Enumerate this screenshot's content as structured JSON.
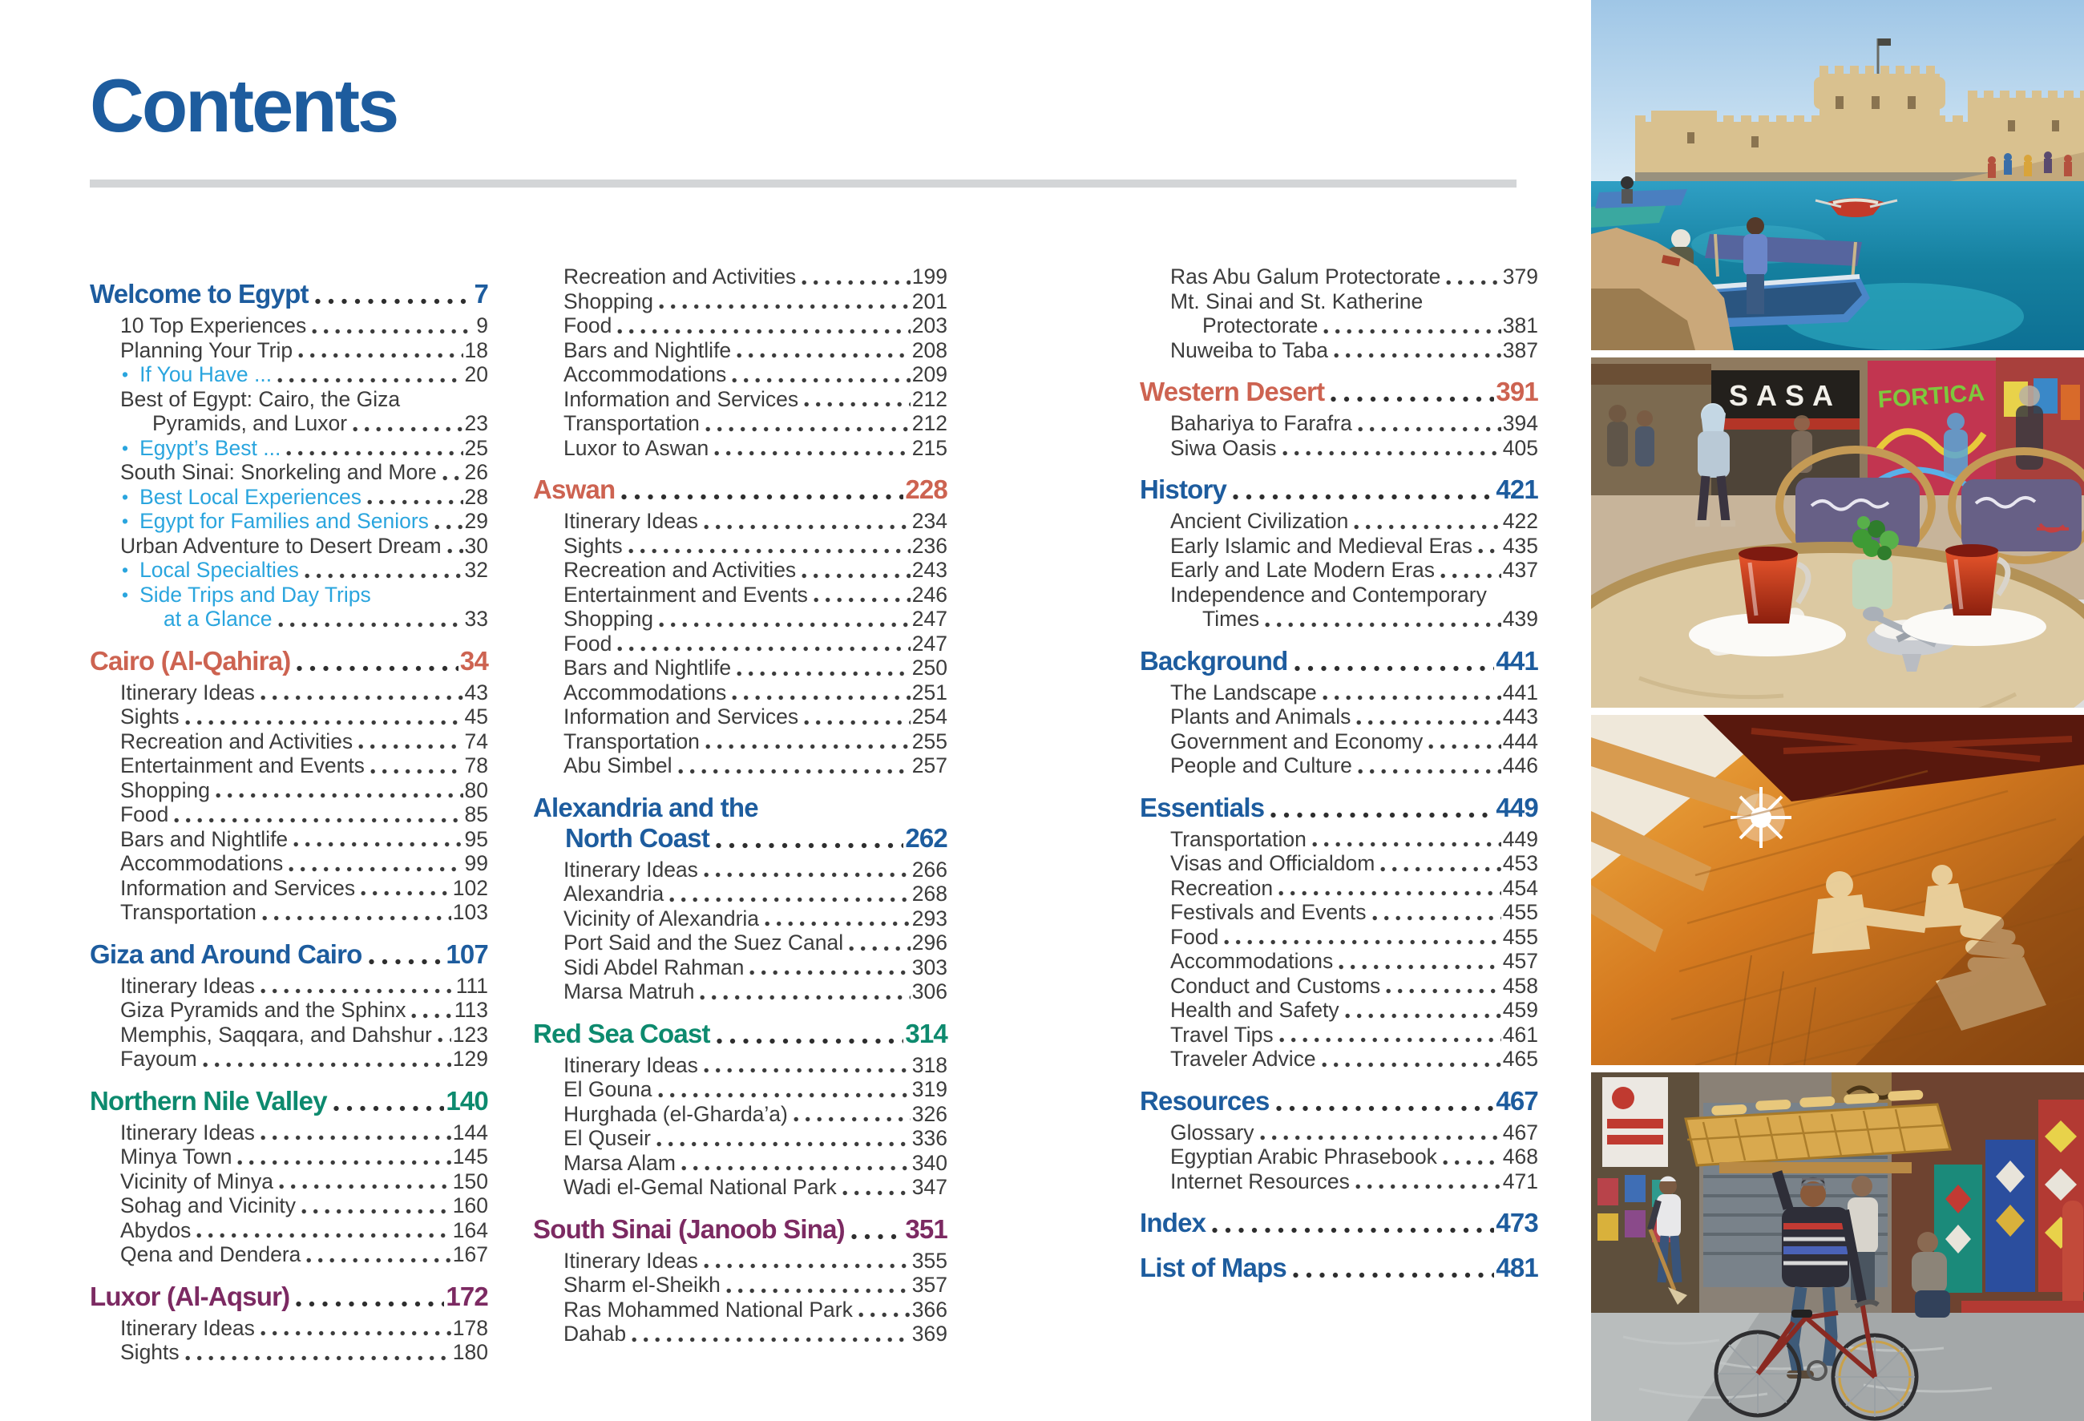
{
  "page": {
    "title": "Contents"
  },
  "colors": {
    "blue": "#1d5c9e",
    "orange": "#cd6351",
    "teal": "#0d8a6e",
    "purple": "#7c2a62",
    "lightblue": "#2aa5de",
    "body": "#3c3c3c",
    "rule": "#d3d5d7"
  },
  "columns": [
    {
      "entries": [
        {
          "type": "section",
          "color": "blue",
          "label": "Welcome to Egypt",
          "page": "7"
        },
        {
          "type": "sub",
          "label": "10 Top Experiences",
          "page": "9"
        },
        {
          "type": "sub",
          "label": "Planning Your Trip",
          "page": "18"
        },
        {
          "type": "bullet",
          "label": "If You Have ...",
          "page": "20"
        },
        {
          "type": "sub",
          "label": "Best of Egypt: Cairo, the Giza",
          "label2": "Pyramids, and Luxor",
          "page": "23"
        },
        {
          "type": "bullet",
          "label": "Egypt’s Best ...",
          "page": "25"
        },
        {
          "type": "sub",
          "label": "South Sinai: Snorkeling and More",
          "page": "26"
        },
        {
          "type": "bullet",
          "label": "Best Local Experiences",
          "page": "28"
        },
        {
          "type": "bullet",
          "label": "Egypt for Families and Seniors",
          "page": "29"
        },
        {
          "type": "sub",
          "label": "Urban Adventure to Desert Dream",
          "page": "30"
        },
        {
          "type": "bullet",
          "label": "Local Specialties",
          "page": "32"
        },
        {
          "type": "bullet",
          "label": "Side Trips and Day Trips",
          "label2": "at a Glance",
          "page": "33"
        },
        {
          "type": "section",
          "color": "orange",
          "label": "Cairo (Al-Qahira)",
          "page": "34"
        },
        {
          "type": "sub",
          "label": "Itinerary Ideas",
          "page": "43"
        },
        {
          "type": "sub",
          "label": "Sights",
          "page": "45"
        },
        {
          "type": "sub",
          "label": "Recreation and Activities",
          "page": "74"
        },
        {
          "type": "sub",
          "label": "Entertainment and Events",
          "page": "78"
        },
        {
          "type": "sub",
          "label": "Shopping",
          "page": "80"
        },
        {
          "type": "sub",
          "label": "Food",
          "page": "85"
        },
        {
          "type": "sub",
          "label": "Bars and Nightlife",
          "page": "95"
        },
        {
          "type": "sub",
          "label": "Accommodations",
          "page": "99"
        },
        {
          "type": "sub",
          "label": "Information and Services",
          "page": "102"
        },
        {
          "type": "sub",
          "label": "Transportation",
          "page": "103"
        },
        {
          "type": "section",
          "color": "blue",
          "label": "Giza and Around Cairo",
          "page": "107"
        },
        {
          "type": "sub",
          "label": "Itinerary Ideas",
          "page": "111"
        },
        {
          "type": "sub",
          "label": "Giza Pyramids and the Sphinx",
          "page": "113"
        },
        {
          "type": "sub",
          "label": "Memphis, Saqqara, and Dahshur",
          "page": "123"
        },
        {
          "type": "sub",
          "label": "Fayoum",
          "page": "129"
        },
        {
          "type": "section",
          "color": "teal",
          "label": "Northern Nile Valley",
          "page": "140"
        },
        {
          "type": "sub",
          "label": "Itinerary Ideas",
          "page": "144"
        },
        {
          "type": "sub",
          "label": "Minya Town",
          "page": "145"
        },
        {
          "type": "sub",
          "label": "Vicinity of Minya",
          "page": "150"
        },
        {
          "type": "sub",
          "label": "Sohag and Vicinity",
          "page": "160"
        },
        {
          "type": "sub",
          "label": "Abydos",
          "page": "164"
        },
        {
          "type": "sub",
          "label": "Qena and Dendera",
          "page": "167"
        },
        {
          "type": "section",
          "color": "purple",
          "label": "Luxor (Al-Aqsur)",
          "page": "172"
        },
        {
          "type": "sub",
          "label": "Itinerary Ideas",
          "page": "178"
        },
        {
          "type": "sub",
          "label": "Sights",
          "page": "180"
        }
      ]
    },
    {
      "entries": [
        {
          "type": "sub",
          "label": "Recreation and Activities",
          "page": "199"
        },
        {
          "type": "sub",
          "label": "Shopping",
          "page": "201"
        },
        {
          "type": "sub",
          "label": "Food",
          "page": "203"
        },
        {
          "type": "sub",
          "label": "Bars and Nightlife",
          "page": "208"
        },
        {
          "type": "sub",
          "label": "Accommodations",
          "page": "209"
        },
        {
          "type": "sub",
          "label": "Information and Services",
          "page": "212"
        },
        {
          "type": "sub",
          "label": "Transportation",
          "page": "212"
        },
        {
          "type": "sub",
          "label": "Luxor to Aswan",
          "page": "215"
        },
        {
          "type": "section",
          "color": "orange",
          "label": "Aswan",
          "page": "228"
        },
        {
          "type": "sub",
          "label": "Itinerary Ideas",
          "page": "234"
        },
        {
          "type": "sub",
          "label": "Sights",
          "page": "236"
        },
        {
          "type": "sub",
          "label": "Recreation and Activities",
          "page": "243"
        },
        {
          "type": "sub",
          "label": "Entertainment and Events",
          "page": "246"
        },
        {
          "type": "sub",
          "label": "Shopping",
          "page": "247"
        },
        {
          "type": "sub",
          "label": "Food",
          "page": "247"
        },
        {
          "type": "sub",
          "label": "Bars and Nightlife",
          "page": "250"
        },
        {
          "type": "sub",
          "label": "Accommodations",
          "page": "251"
        },
        {
          "type": "sub",
          "label": "Information and Services",
          "page": "254"
        },
        {
          "type": "sub",
          "label": "Transportation",
          "page": "255"
        },
        {
          "type": "sub",
          "label": "Abu Simbel",
          "page": "257"
        },
        {
          "type": "section",
          "color": "blue",
          "label": "Alexandria and the",
          "label2": "North Coast",
          "page": "262"
        },
        {
          "type": "sub",
          "label": "Itinerary Ideas",
          "page": "266"
        },
        {
          "type": "sub",
          "label": "Alexandria",
          "page": "268"
        },
        {
          "type": "sub",
          "label": "Vicinity of Alexandria",
          "page": "293"
        },
        {
          "type": "sub",
          "label": "Port Said and the Suez Canal",
          "page": "296"
        },
        {
          "type": "sub",
          "label": "Sidi Abdel Rahman",
          "page": "303"
        },
        {
          "type": "sub",
          "label": "Marsa Matruh",
          "page": "306"
        },
        {
          "type": "section",
          "color": "teal",
          "label": "Red Sea Coast",
          "page": "314"
        },
        {
          "type": "sub",
          "label": "Itinerary Ideas",
          "page": "318"
        },
        {
          "type": "sub",
          "label": "El Gouna",
          "page": "319"
        },
        {
          "type": "sub",
          "label": "Hurghada (el-Gharda’a)",
          "page": "326"
        },
        {
          "type": "sub",
          "label": "El Quseir",
          "page": "336"
        },
        {
          "type": "sub",
          "label": "Marsa Alam",
          "page": "340"
        },
        {
          "type": "sub",
          "label": "Wadi el-Gemal National Park",
          "page": "347"
        },
        {
          "type": "section",
          "color": "purple",
          "label": "South Sinai (Janoob Sina)",
          "page": "351"
        },
        {
          "type": "sub",
          "label": "Itinerary Ideas",
          "page": "355"
        },
        {
          "type": "sub",
          "label": "Sharm el-Sheikh",
          "page": "357"
        },
        {
          "type": "sub",
          "label": "Ras Mohammed National Park",
          "page": "366"
        },
        {
          "type": "sub",
          "label": "Dahab",
          "page": "369"
        }
      ]
    },
    {
      "entries": [
        {
          "type": "sub",
          "label": "Ras Abu Galum Protectorate",
          "page": "379"
        },
        {
          "type": "sub",
          "label": "Mt. Sinai and St. Katherine",
          "label2": "Protectorate",
          "page": "381"
        },
        {
          "type": "sub",
          "label": "Nuweiba to Taba",
          "page": "387"
        },
        {
          "type": "section",
          "color": "orange",
          "label": "Western Desert",
          "page": "391"
        },
        {
          "type": "sub",
          "label": "Bahariya to Farafra",
          "page": "394"
        },
        {
          "type": "sub",
          "label": "Siwa Oasis",
          "page": "405"
        },
        {
          "type": "section",
          "color": "blue",
          "label": "History",
          "page": "421"
        },
        {
          "type": "sub",
          "label": "Ancient Civilization",
          "page": "422"
        },
        {
          "type": "sub",
          "label": "Early Islamic and Medieval Eras",
          "page": "435"
        },
        {
          "type": "sub",
          "label": "Early and Late Modern Eras",
          "page": "437"
        },
        {
          "type": "sub",
          "label": "Independence and Contemporary",
          "label2": "Times",
          "page": "439"
        },
        {
          "type": "section",
          "color": "blue",
          "label": "Background",
          "page": "441"
        },
        {
          "type": "sub",
          "label": "The Landscape",
          "page": "441"
        },
        {
          "type": "sub",
          "label": "Plants and Animals",
          "page": "443"
        },
        {
          "type": "sub",
          "label": "Government and Economy",
          "page": "444"
        },
        {
          "type": "sub",
          "label": "People and Culture",
          "page": "446"
        },
        {
          "type": "section",
          "color": "blue",
          "label": "Essentials",
          "page": "449"
        },
        {
          "type": "sub",
          "label": "Transportation",
          "page": "449"
        },
        {
          "type": "sub",
          "label": "Visas and Officialdom",
          "page": "453"
        },
        {
          "type": "sub",
          "label": "Recreation",
          "page": "454"
        },
        {
          "type": "sub",
          "label": "Festivals and Events",
          "page": "455"
        },
        {
          "type": "sub",
          "label": "Food",
          "page": "455"
        },
        {
          "type": "sub",
          "label": "Accommodations",
          "page": "457"
        },
        {
          "type": "sub",
          "label": "Conduct and Customs",
          "page": "458"
        },
        {
          "type": "sub",
          "label": "Health and Safety",
          "page": "459"
        },
        {
          "type": "sub",
          "label": "Travel Tips",
          "page": "461"
        },
        {
          "type": "sub",
          "label": "Traveler Advice",
          "page": "465"
        },
        {
          "type": "section",
          "color": "blue",
          "label": "Resources",
          "page": "467"
        },
        {
          "type": "sub",
          "label": "Glossary",
          "page": "467"
        },
        {
          "type": "sub",
          "label": "Egyptian Arabic Phrasebook",
          "page": "468"
        },
        {
          "type": "sub",
          "label": "Internet Resources",
          "page": "471"
        },
        {
          "type": "section",
          "color": "blue",
          "label": "Index",
          "page": "473"
        },
        {
          "type": "section",
          "color": "blue",
          "label": "List of Maps",
          "page": "481"
        }
      ]
    }
  ],
  "photos": {
    "signs": {
      "sasa": "SASA",
      "fortica": "FORTICA"
    }
  }
}
